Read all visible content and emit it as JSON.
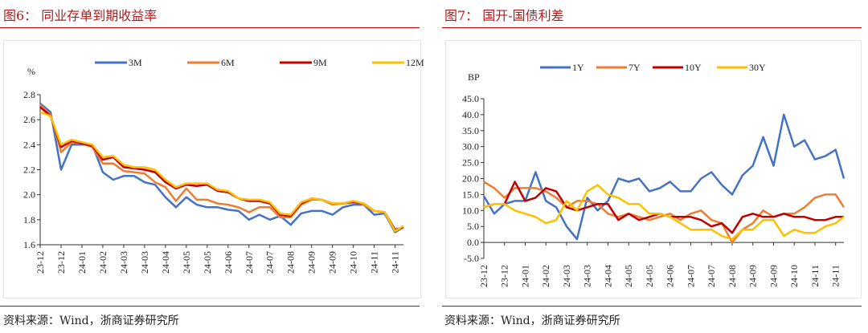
{
  "colors": {
    "blue": "#4472C4",
    "orange": "#ED7D31",
    "red": "#C00000",
    "yellow": "#FFC000"
  },
  "left": {
    "title": "图6：  同业存单到期收益率",
    "source": "资料来源：Wind，浙商证券研究所"
  },
  "right": {
    "title": "图7：  国开-国债利差",
    "source": "资料来源：Wind，浙商证券研究所"
  },
  "chart_data": [
    {
      "type": "line",
      "title": "同业存单到期收益率",
      "ylabel": "%",
      "ylim": [
        1.6,
        2.8
      ],
      "yticks": [
        "1.6",
        "1.8",
        "2.0",
        "2.2",
        "2.4",
        "2.6",
        "2.8"
      ],
      "xticks": [
        "23-12",
        "23-12",
        "24-01",
        "24-02",
        "24-03",
        "24-03",
        "24-04",
        "24-05",
        "24-05",
        "24-06",
        "24-07",
        "24-07",
        "24-08",
        "24-09",
        "24-09",
        "24-10",
        "24-11",
        "24-11"
      ],
      "x": [
        0,
        0.5,
        1,
        1.5,
        2,
        2.5,
        3,
        3.5,
        4,
        4.5,
        5,
        5.5,
        6,
        6.5,
        7,
        7.5,
        8,
        8.5,
        9,
        9.5,
        10,
        10.5,
        11,
        11.5,
        12,
        12.5,
        13,
        13.5,
        14,
        14.5,
        15,
        15.5,
        16,
        16.5,
        17,
        17.4
      ],
      "legend": "top",
      "series": [
        {
          "name": "3M",
          "color": "#4472C4",
          "values": [
            2.73,
            2.66,
            2.2,
            2.4,
            2.4,
            2.4,
            2.18,
            2.12,
            2.15,
            2.15,
            2.1,
            2.08,
            1.98,
            1.9,
            1.98,
            1.92,
            1.9,
            1.9,
            1.88,
            1.87,
            1.8,
            1.84,
            1.8,
            1.83,
            1.76,
            1.85,
            1.87,
            1.87,
            1.84,
            1.9,
            1.92,
            1.92,
            1.84,
            1.85,
            1.7,
            1.74
          ]
        },
        {
          "name": "6M",
          "color": "#ED7D31",
          "values": [
            2.72,
            2.64,
            2.34,
            2.42,
            2.41,
            2.38,
            2.25,
            2.25,
            2.19,
            2.18,
            2.17,
            2.1,
            2.06,
            1.95,
            2.05,
            1.96,
            1.96,
            1.93,
            1.92,
            1.9,
            1.86,
            1.9,
            1.9,
            1.82,
            1.82,
            1.92,
            1.96,
            1.96,
            1.92,
            1.93,
            1.95,
            1.92,
            1.87,
            1.86,
            1.71,
            1.74
          ]
        },
        {
          "name": "9M",
          "color": "#C00000",
          "values": [
            2.7,
            2.63,
            2.38,
            2.43,
            2.41,
            2.39,
            2.28,
            2.3,
            2.22,
            2.21,
            2.2,
            2.18,
            2.1,
            2.05,
            2.08,
            2.07,
            2.08,
            2.03,
            2.02,
            1.97,
            1.95,
            1.95,
            1.93,
            1.84,
            1.83,
            1.93,
            1.97,
            1.96,
            1.93,
            1.93,
            1.94,
            1.93,
            1.87,
            1.86,
            1.72,
            1.74
          ]
        },
        {
          "name": "12M",
          "color": "#FFC000",
          "values": [
            2.66,
            2.63,
            2.4,
            2.44,
            2.42,
            2.4,
            2.3,
            2.31,
            2.24,
            2.22,
            2.22,
            2.2,
            2.12,
            2.06,
            2.09,
            2.09,
            2.09,
            2.04,
            2.03,
            1.97,
            1.96,
            1.96,
            1.94,
            1.85,
            1.84,
            1.94,
            1.97,
            1.96,
            1.93,
            1.93,
            1.95,
            1.93,
            1.87,
            1.86,
            1.71,
            1.75
          ]
        }
      ]
    },
    {
      "type": "line",
      "title": "国开-国债利差",
      "ylabel": "BP",
      "ylim": [
        -5,
        45
      ],
      "yticks": [
        "-5.0",
        "0.0",
        "5.0",
        "10.0",
        "15.0",
        "20.0",
        "25.0",
        "30.0",
        "35.0",
        "40.0",
        "45.0"
      ],
      "xticks": [
        "23-12",
        "23-12",
        "24-01",
        "24-02",
        "24-03",
        "24-03",
        "24-04",
        "24-05",
        "24-05",
        "24-06",
        "24-07",
        "24-07",
        "24-08",
        "24-09",
        "24-09",
        "24-10",
        "24-11",
        "24-11"
      ],
      "x": [
        0,
        0.5,
        1,
        1.5,
        2,
        2.5,
        3,
        3.5,
        4,
        4.5,
        5,
        5.5,
        6,
        6.5,
        7,
        7.5,
        8,
        8.5,
        9,
        9.5,
        10,
        10.5,
        11,
        11.5,
        12,
        12.5,
        13,
        13.5,
        14,
        14.5,
        15,
        15.5,
        16,
        16.5,
        17,
        17.4
      ],
      "legend": "top",
      "series": [
        {
          "name": "1Y",
          "color": "#4472C4",
          "values": [
            14.5,
            9,
            12,
            13,
            13,
            22,
            13,
            11,
            5,
            1,
            14,
            10,
            13,
            20,
            19,
            20,
            16,
            17,
            19,
            16,
            16,
            20,
            22,
            18,
            15,
            21,
            24,
            33,
            24,
            40,
            30,
            32,
            26,
            27,
            29,
            20
          ]
        },
        {
          "name": "7Y",
          "color": "#ED7D31",
          "values": [
            19,
            17,
            14,
            17,
            17,
            17,
            16,
            14,
            11,
            13,
            13,
            12,
            9,
            8,
            9,
            8,
            7,
            8,
            9,
            7,
            9,
            10,
            7,
            6,
            0,
            4,
            6,
            10,
            8,
            9,
            9,
            11,
            14,
            15,
            15,
            11
          ]
        },
        {
          "name": "10Y",
          "color": "#C00000",
          "values": [
            11,
            12,
            12,
            19,
            13,
            14,
            17,
            16,
            11,
            10,
            11,
            12,
            12,
            7,
            9,
            7,
            8,
            9,
            8,
            8,
            8,
            7,
            5,
            6,
            3,
            8,
            9,
            8,
            8,
            9,
            8,
            8,
            7,
            7,
            8,
            8
          ]
        },
        {
          "name": "30Y",
          "color": "#FFC000",
          "values": [
            11,
            12,
            12,
            10,
            9,
            8,
            6,
            7,
            13,
            10,
            16,
            18,
            15,
            14,
            12,
            12,
            9,
            9,
            8,
            6,
            4,
            4,
            4,
            2,
            1,
            4,
            4,
            7,
            7,
            2,
            4,
            3,
            3,
            5,
            6,
            8
          ]
        }
      ]
    }
  ]
}
